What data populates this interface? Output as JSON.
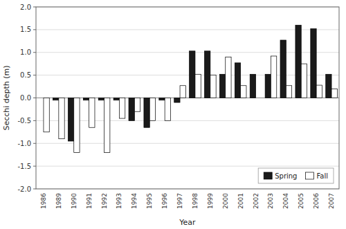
{
  "chart_data": {
    "type": "bar",
    "xlabel": "Year",
    "ylabel": "Secchi depth (m)",
    "categories": [
      "1986",
      "1989",
      "1990",
      "1991",
      "1992",
      "1993",
      "1994",
      "1995",
      "1996",
      "1997",
      "1998",
      "1999",
      "2000",
      "2001",
      "2002",
      "2003",
      "2004",
      "2005",
      "2006",
      "2007"
    ],
    "series": [
      {
        "name": "Spring",
        "color": "#1a1a1a",
        "values": [
          0.0,
          -0.05,
          -0.95,
          -0.05,
          -0.05,
          -0.05,
          -0.5,
          -0.65,
          -0.05,
          -0.1,
          1.03,
          1.03,
          0.52,
          0.77,
          0.52,
          0.52,
          1.27,
          1.6,
          1.52,
          0.52
        ]
      },
      {
        "name": "Fall",
        "color": "#ffffff",
        "values": [
          -0.75,
          -0.9,
          -1.2,
          -0.65,
          -1.2,
          -0.45,
          -0.3,
          -0.5,
          -0.5,
          0.27,
          0.52,
          0.5,
          0.9,
          0.27,
          null,
          0.92,
          0.27,
          0.75,
          0.28,
          0.2
        ]
      }
    ],
    "ylim": [
      -2.0,
      2.0
    ],
    "yticks": [
      {
        "value": -2.0,
        "label": "-2.0"
      },
      -1.5,
      {
        "value": -1.0,
        "label": "-1.0"
      },
      -0.5,
      {
        "value": 0.0,
        "label": "0.0"
      },
      0.5,
      {
        "value": 1.0,
        "label": "1.0"
      },
      1.5,
      {
        "value": 2.0,
        "label": "2.0"
      }
    ],
    "grid": true,
    "legend": "lower right"
  }
}
